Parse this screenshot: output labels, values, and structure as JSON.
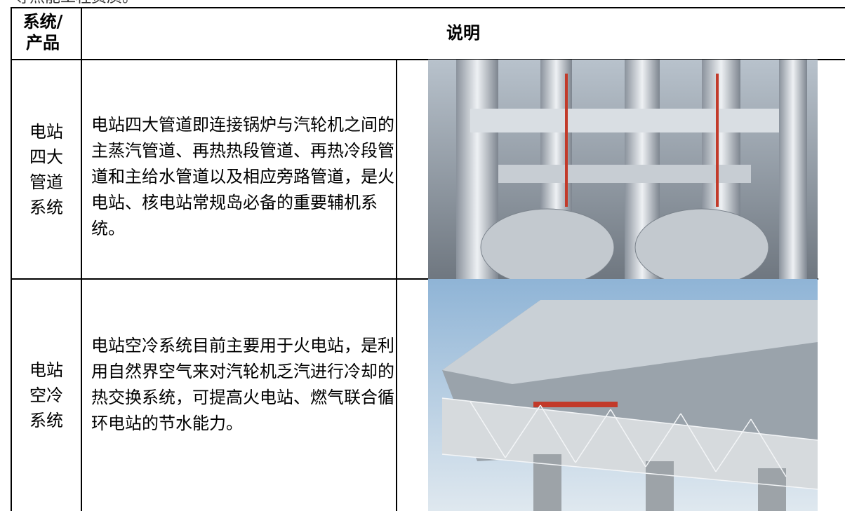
{
  "header": {
    "top_text": "等热能工程资质。"
  },
  "table": {
    "columns": [
      "系统/产品",
      "说明"
    ],
    "rows": [
      [
        "电站四大管道系统",
        "电站四大管道即连接锅炉与汽轮机之间的主蒸汽管道、再热热段管道、再热冷段管道和主给水管道以及相应旁路管道，是火电站、核电站常规岛必备的重要辅机系统。"
      ],
      [
        "电站空冷系统",
        "电站空冷系统目前主要用于火电站，是利用自然界空气来对汽轮机乏汽进行冷却的热交换系统，可提高火电站、燃气联合循环电站的节水能力。"
      ]
    ]
  }
}
